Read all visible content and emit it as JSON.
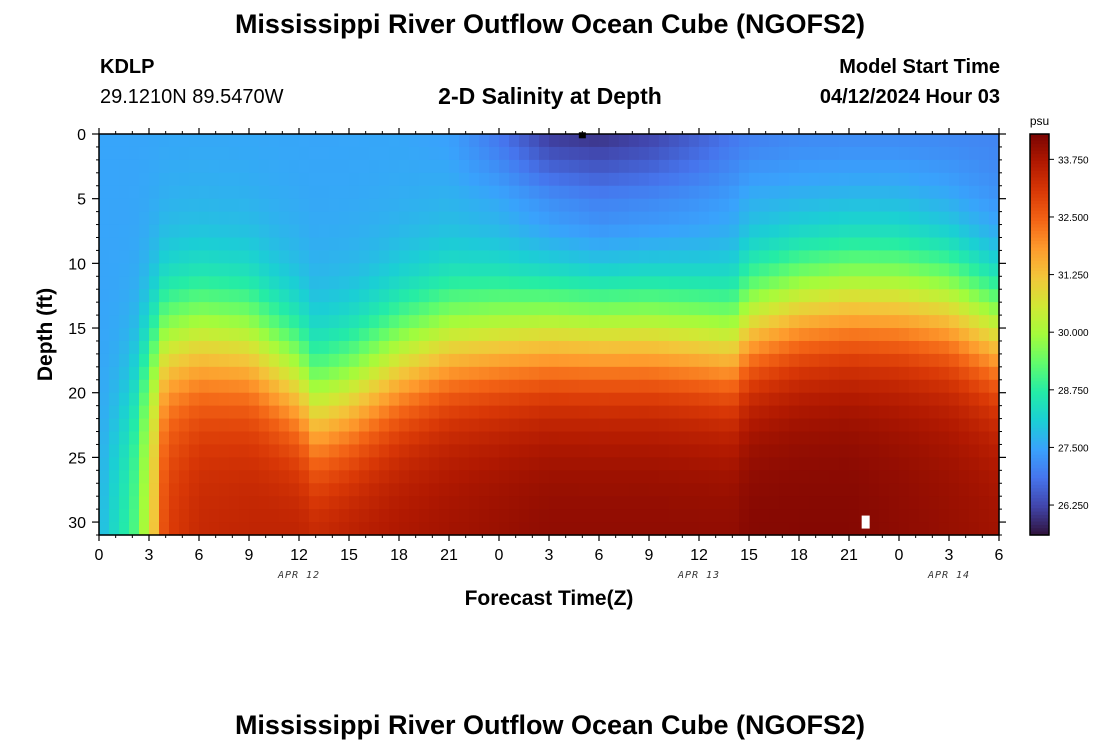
{
  "header": {
    "title": "Mississippi River Outflow Ocean Cube (NGOFS2)",
    "station": "KDLP",
    "coords": "29.1210N  89.5470W",
    "subtitle": "2-D Salinity at Depth",
    "model_start_label": "Model Start Time",
    "model_start_value": "04/12/2024 Hour 03"
  },
  "footer": {
    "title": "Mississippi River Outflow Ocean Cube (NGOFS2)"
  },
  "chart_data": {
    "type": "heatmap",
    "title": "2-D Salinity at Depth",
    "xlabel": "Forecast Time(Z)",
    "ylabel": "Depth (ft)",
    "x_tick_labels": [
      "0",
      "3",
      "6",
      "9",
      "12",
      "15",
      "18",
      "21",
      "0",
      "3",
      "6",
      "9",
      "12",
      "15",
      "18",
      "21",
      "0",
      "3",
      "6"
    ],
    "x_hours_from_apr12_00z": [
      0,
      3,
      6,
      9,
      12,
      15,
      18,
      21,
      24,
      27,
      30,
      33,
      36,
      39,
      42,
      45,
      48,
      51,
      54
    ],
    "date_labels": [
      {
        "label": "APR 12",
        "hour": 12
      },
      {
        "label": "APR 13",
        "hour": 36
      },
      {
        "label": "APR 14",
        "hour": 51
      }
    ],
    "y_ticks": [
      0,
      5,
      10,
      15,
      20,
      25,
      30
    ],
    "ylim": [
      31,
      0
    ],
    "xlim": [
      0,
      54
    ],
    "colorbar": {
      "unit": "psu",
      "ticks": [
        "33.750",
        "32.500",
        "31.250",
        "30.000",
        "28.750",
        "27.500",
        "26.250"
      ],
      "tick_values": [
        33.75,
        32.5,
        31.25,
        30.0,
        28.75,
        27.5,
        26.25
      ],
      "range": [
        25.6,
        34.3
      ],
      "colors": [
        "#30123b",
        "#4145ab",
        "#4675ed",
        "#39a2fc",
        "#1bcfd4",
        "#24eca6",
        "#61fc6c",
        "#a4fc3b",
        "#d1e834",
        "#f3c63a",
        "#fe9b2d",
        "#f36315",
        "#d93806",
        "#b11901",
        "#7a0402"
      ]
    },
    "series": [
      {
        "description": "salinity (psu) at depth",
        "x": [
          0,
          2,
          3,
          4,
          6,
          9,
          12,
          13,
          15,
          18,
          21,
          24,
          27,
          30,
          33,
          36,
          38,
          39,
          42,
          45,
          48,
          51,
          54
        ],
        "surface_psu": [
          27.5,
          27.5,
          27.5,
          27.5,
          27.5,
          27.5,
          27.5,
          27.5,
          27.5,
          27.5,
          27.4,
          26.8,
          26.0,
          25.9,
          26.1,
          26.5,
          26.8,
          26.9,
          27.0,
          27.0,
          27.0,
          27.0,
          27.0
        ],
        "mid_depth_5ft_psu": [
          27.5,
          27.5,
          27.5,
          27.5,
          27.5,
          27.5,
          27.5,
          27.5,
          27.5,
          27.5,
          27.5,
          27.3,
          26.9,
          26.7,
          26.8,
          27.0,
          27.2,
          27.3,
          27.2,
          27.2,
          27.2,
          27.1,
          27.0
        ],
        "halocline_depth_ft": [
          25.0,
          20.0,
          17.0,
          16.0,
          15.5,
          16.0,
          19.0,
          21.0,
          20.0,
          17.5,
          16.0,
          15.5,
          15.0,
          15.0,
          15.0,
          15.5,
          16.0,
          14.5,
          13.0,
          12.5,
          12.5,
          13.0,
          15.0
        ],
        "bottom_psu": [
          27.8,
          29.0,
          30.5,
          33.0,
          33.4,
          33.5,
          33.6,
          33.6,
          33.7,
          33.8,
          33.9,
          34.0,
          34.1,
          34.1,
          34.1,
          34.1,
          34.1,
          34.2,
          34.2,
          34.2,
          34.1,
          34.0,
          33.9
        ]
      }
    ],
    "markers": [
      {
        "hour": 29,
        "depth_ft": 0.1,
        "color": "#000000"
      },
      {
        "hour": 46,
        "depth_ft": 30.0,
        "color": "#ffffff"
      }
    ]
  }
}
